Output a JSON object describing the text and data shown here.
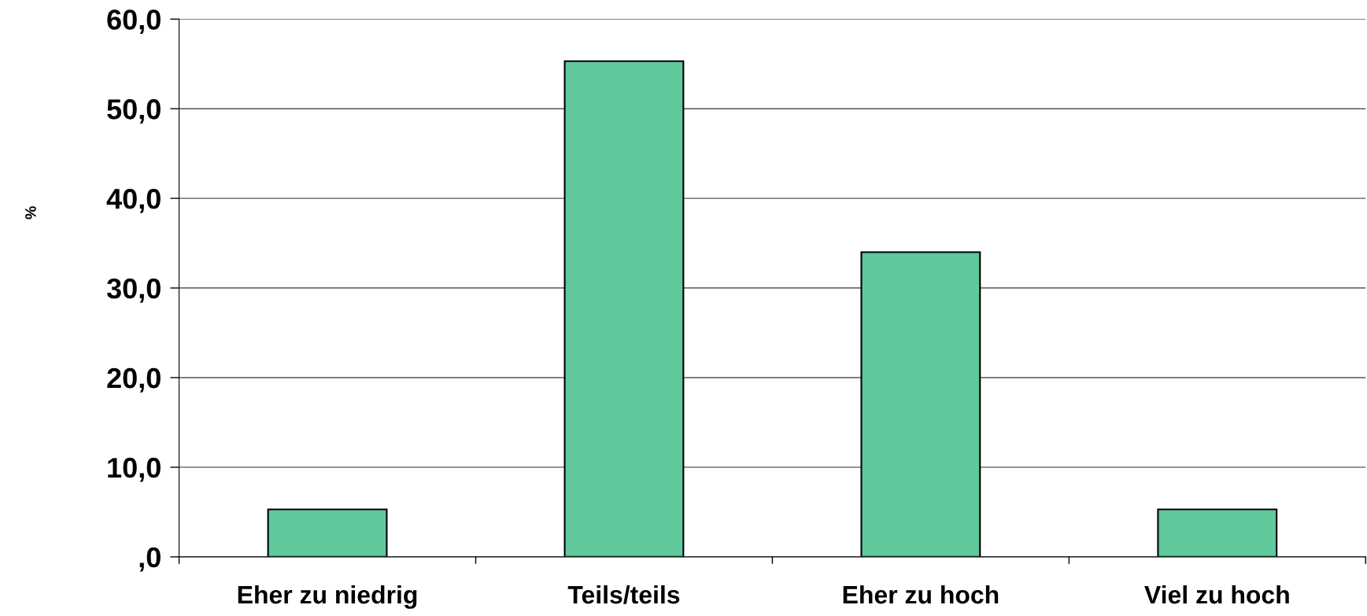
{
  "chart_data": {
    "type": "bar",
    "ylabel": "%",
    "categories": [
      "Eher zu niedrig",
      "Teils/teils",
      "Eher zu hoch",
      "Viel zu hoch"
    ],
    "values": [
      5.3,
      55.3,
      34.0,
      5.3
    ],
    "color": "#5fc99b",
    "ylim": [
      0,
      60
    ],
    "yticks": [
      {
        "value": 0,
        "label": ",0"
      },
      {
        "value": 10,
        "label": "10,0"
      },
      {
        "value": 20,
        "label": "20,0"
      },
      {
        "value": 30,
        "label": "30,0"
      },
      {
        "value": 40,
        "label": "40,0"
      },
      {
        "value": 50,
        "label": "50,0"
      },
      {
        "value": 60,
        "label": "60,0"
      }
    ],
    "grid": "y"
  }
}
